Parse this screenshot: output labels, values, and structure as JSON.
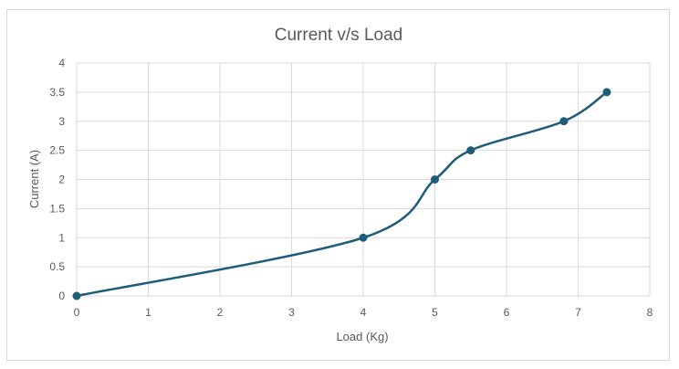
{
  "chart_data": {
    "type": "scatter",
    "title": "Current v/s Load",
    "xlabel": "Load (Kg)",
    "ylabel": "Current (A)",
    "xlim": [
      0,
      8
    ],
    "ylim": [
      0,
      4
    ],
    "x_ticks": [
      "0",
      "1",
      "2",
      "3",
      "4",
      "5",
      "6",
      "7",
      "8"
    ],
    "y_ticks": [
      "0",
      "0.5",
      "1",
      "1.5",
      "2",
      "2.5",
      "3",
      "3.5",
      "4"
    ],
    "grid": true,
    "smooth_line": true,
    "series": [
      {
        "x": [
          0,
          4,
          5,
          5.5,
          6.8,
          7.4
        ],
        "y": [
          0,
          1,
          2,
          2.5,
          3,
          3.5
        ],
        "color": "#1f5c7a"
      }
    ]
  }
}
